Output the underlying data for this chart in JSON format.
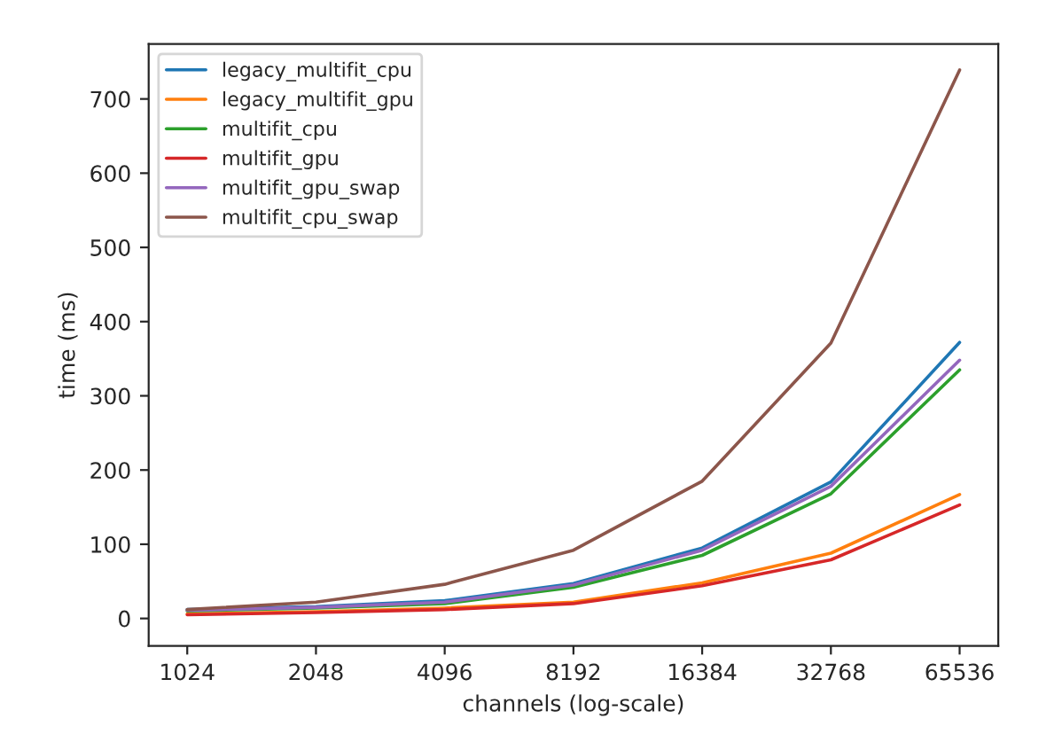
{
  "chart_data": {
    "type": "line",
    "xlabel": "channels (log-scale)",
    "ylabel": "time (ms)",
    "x": [
      1024,
      2048,
      4096,
      8192,
      16384,
      32768,
      65536
    ],
    "series": [
      {
        "name": "legacy_multifit_cpu",
        "color": "#1f77b4",
        "values": [
          12,
          16,
          24,
          47,
          95,
          184,
          372
        ]
      },
      {
        "name": "legacy_multifit_gpu",
        "color": "#ff7f0e",
        "values": [
          6,
          9,
          14,
          22,
          48,
          88,
          167
        ]
      },
      {
        "name": "multifit_cpu",
        "color": "#2ca02c",
        "values": [
          10,
          14,
          20,
          42,
          85,
          168,
          335
        ]
      },
      {
        "name": "multifit_gpu",
        "color": "#d62728",
        "values": [
          5,
          8,
          12,
          20,
          44,
          79,
          153
        ]
      },
      {
        "name": "multifit_gpu_swap",
        "color": "#9467bd",
        "values": [
          11,
          15,
          22,
          45,
          92,
          178,
          348
        ]
      },
      {
        "name": "multifit_cpu_swap",
        "color": "#8c564b",
        "values": [
          12,
          22,
          46,
          92,
          185,
          371,
          739
        ]
      }
    ],
    "log": "x",
    "xlim": [
      832,
      80700
    ],
    "xticks": [
      1024,
      2048,
      4096,
      8192,
      16384,
      32768,
      65536
    ],
    "ylim": [
      -37,
      774
    ],
    "yticks": [
      0,
      100,
      200,
      300,
      400,
      500,
      600,
      700
    ],
    "grid": false,
    "legend": "top left"
  }
}
